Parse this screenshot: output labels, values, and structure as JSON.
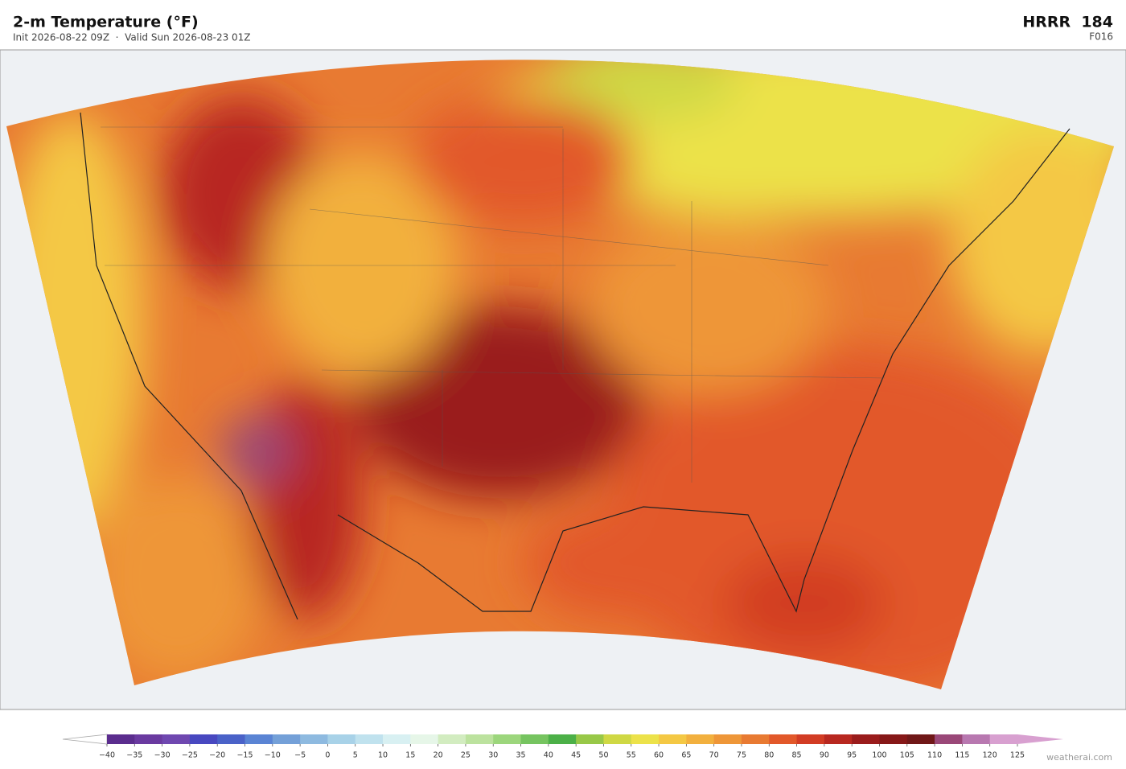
{
  "header": {
    "title": "2-m Temperature  (°F)",
    "subtitle": "Init 2026-08-22 09Z  ·  Valid Sun 2026-08-23 01Z",
    "model": "HRRR  184",
    "forecast_hour": "F016"
  },
  "colorbar": {
    "range": [
      -40,
      125
    ],
    "ticks": [
      {
        "value": -40,
        "label": "−40"
      },
      {
        "value": -35,
        "label": "−35"
      },
      {
        "value": -30,
        "label": "−30"
      },
      {
        "value": -25,
        "label": "−25"
      },
      {
        "value": -20,
        "label": "−20"
      },
      {
        "value": -15,
        "label": "−15"
      },
      {
        "value": -10,
        "label": "−10"
      },
      {
        "value": -5,
        "label": "−5"
      },
      0,
      5,
      10,
      15,
      20,
      25,
      30,
      35,
      40,
      45,
      50,
      55,
      60,
      65,
      70,
      75,
      80,
      85,
      90,
      95,
      100,
      105,
      110,
      115,
      120,
      125
    ],
    "colors": [
      "#5b2d8e",
      "#6a3aa0",
      "#6f48b0",
      "#4848c0",
      "#4a62c8",
      "#5a84d4",
      "#74a0d8",
      "#8ebae0",
      "#a8d2e8",
      "#c0e2ee",
      "#d8f0f2",
      "#e6f6e8",
      "#d2ecc0",
      "#bce29e",
      "#9cd67c",
      "#76c460",
      "#4cb048",
      "#98c848",
      "#cfd844",
      "#ece24a",
      "#f4c844",
      "#f2b03e",
      "#ee9638",
      "#e87a32",
      "#e2582a",
      "#d23c24",
      "#b82820",
      "#9a1c1c",
      "#861818",
      "#701818",
      "#9a4878",
      "#b878b0",
      "#d8a0d0"
    ],
    "extend_min_color": "#ffffff",
    "extend_max_color": "#d8a0d0"
  },
  "watermark": "weatherai.com"
}
